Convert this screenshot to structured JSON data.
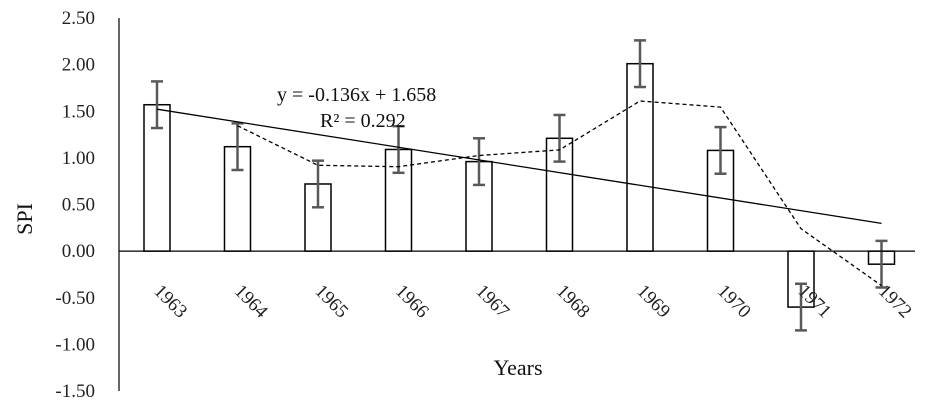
{
  "chart_data": {
    "type": "bar",
    "categories": [
      "1963",
      "1964",
      "1965",
      "1966",
      "1967",
      "1968",
      "1969",
      "1970",
      "1971",
      "1972"
    ],
    "values": [
      1.57,
      1.12,
      0.72,
      1.09,
      0.96,
      1.21,
      2.01,
      1.08,
      -0.6,
      -0.14
    ],
    "error": 0.25,
    "moving_average": [
      null,
      1.345,
      0.92,
      0.905,
      1.025,
      1.085,
      1.61,
      1.545,
      0.24,
      -0.37
    ],
    "trendline": {
      "slope": -0.136,
      "intercept": 1.658
    },
    "annotations": {
      "equation": "y = -0.136x + 1.658",
      "r_squared": "R² = 0.292"
    },
    "xlabel": "Years",
    "ylabel": "SPI",
    "ylim": [
      -1.5,
      2.5
    ],
    "yticks": [
      "2.50",
      "2.00",
      "1.50",
      "1.00",
      "0.50",
      "0.00",
      "-0.50",
      "-1.00",
      "-1.50"
    ],
    "ytick_values": [
      2.5,
      2.0,
      1.5,
      1.0,
      0.5,
      0.0,
      -0.5,
      -1.0,
      -1.5
    ],
    "grid": false,
    "legend": "none",
    "colors": {
      "bar_fill": "#ffffff",
      "bar_stroke": "#000000",
      "error_bar": "#595959",
      "lines": "#000000"
    }
  }
}
